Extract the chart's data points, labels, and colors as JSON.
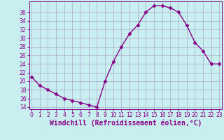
{
  "x": [
    0,
    1,
    2,
    3,
    4,
    5,
    6,
    7,
    8,
    9,
    10,
    11,
    12,
    13,
    14,
    15,
    16,
    17,
    18,
    19,
    20,
    21,
    22,
    23
  ],
  "y": [
    21,
    19,
    18,
    17,
    16,
    15.5,
    15,
    14.5,
    14,
    20,
    24.5,
    28,
    31,
    33,
    36,
    37.5,
    37.5,
    37,
    36,
    33,
    29,
    27,
    24,
    24
  ],
  "line_color": "#880088",
  "marker": "D",
  "marker_size": 2.5,
  "bg_color": "#c8eef0",
  "grid_color": "#aaaacc",
  "xlabel": "Windchill (Refroidissement éolien,°C)",
  "ylim": [
    13.5,
    38.5
  ],
  "yticks": [
    14,
    16,
    18,
    20,
    22,
    24,
    26,
    28,
    30,
    32,
    34,
    36
  ],
  "ytick_labels": [
    "14",
    "16",
    "18",
    "20",
    "22",
    "24",
    "26",
    "28",
    "30",
    "32",
    "34",
    "36"
  ],
  "xticks": [
    0,
    1,
    2,
    3,
    4,
    5,
    6,
    7,
    8,
    9,
    10,
    11,
    12,
    13,
    14,
    15,
    16,
    17,
    18,
    19,
    20,
    21,
    22,
    23
  ],
  "xlim": [
    -0.3,
    23.3
  ],
  "tick_color": "#880088",
  "tick_fontsize": 5.5,
  "label_fontsize": 7,
  "linewidth": 1.0
}
